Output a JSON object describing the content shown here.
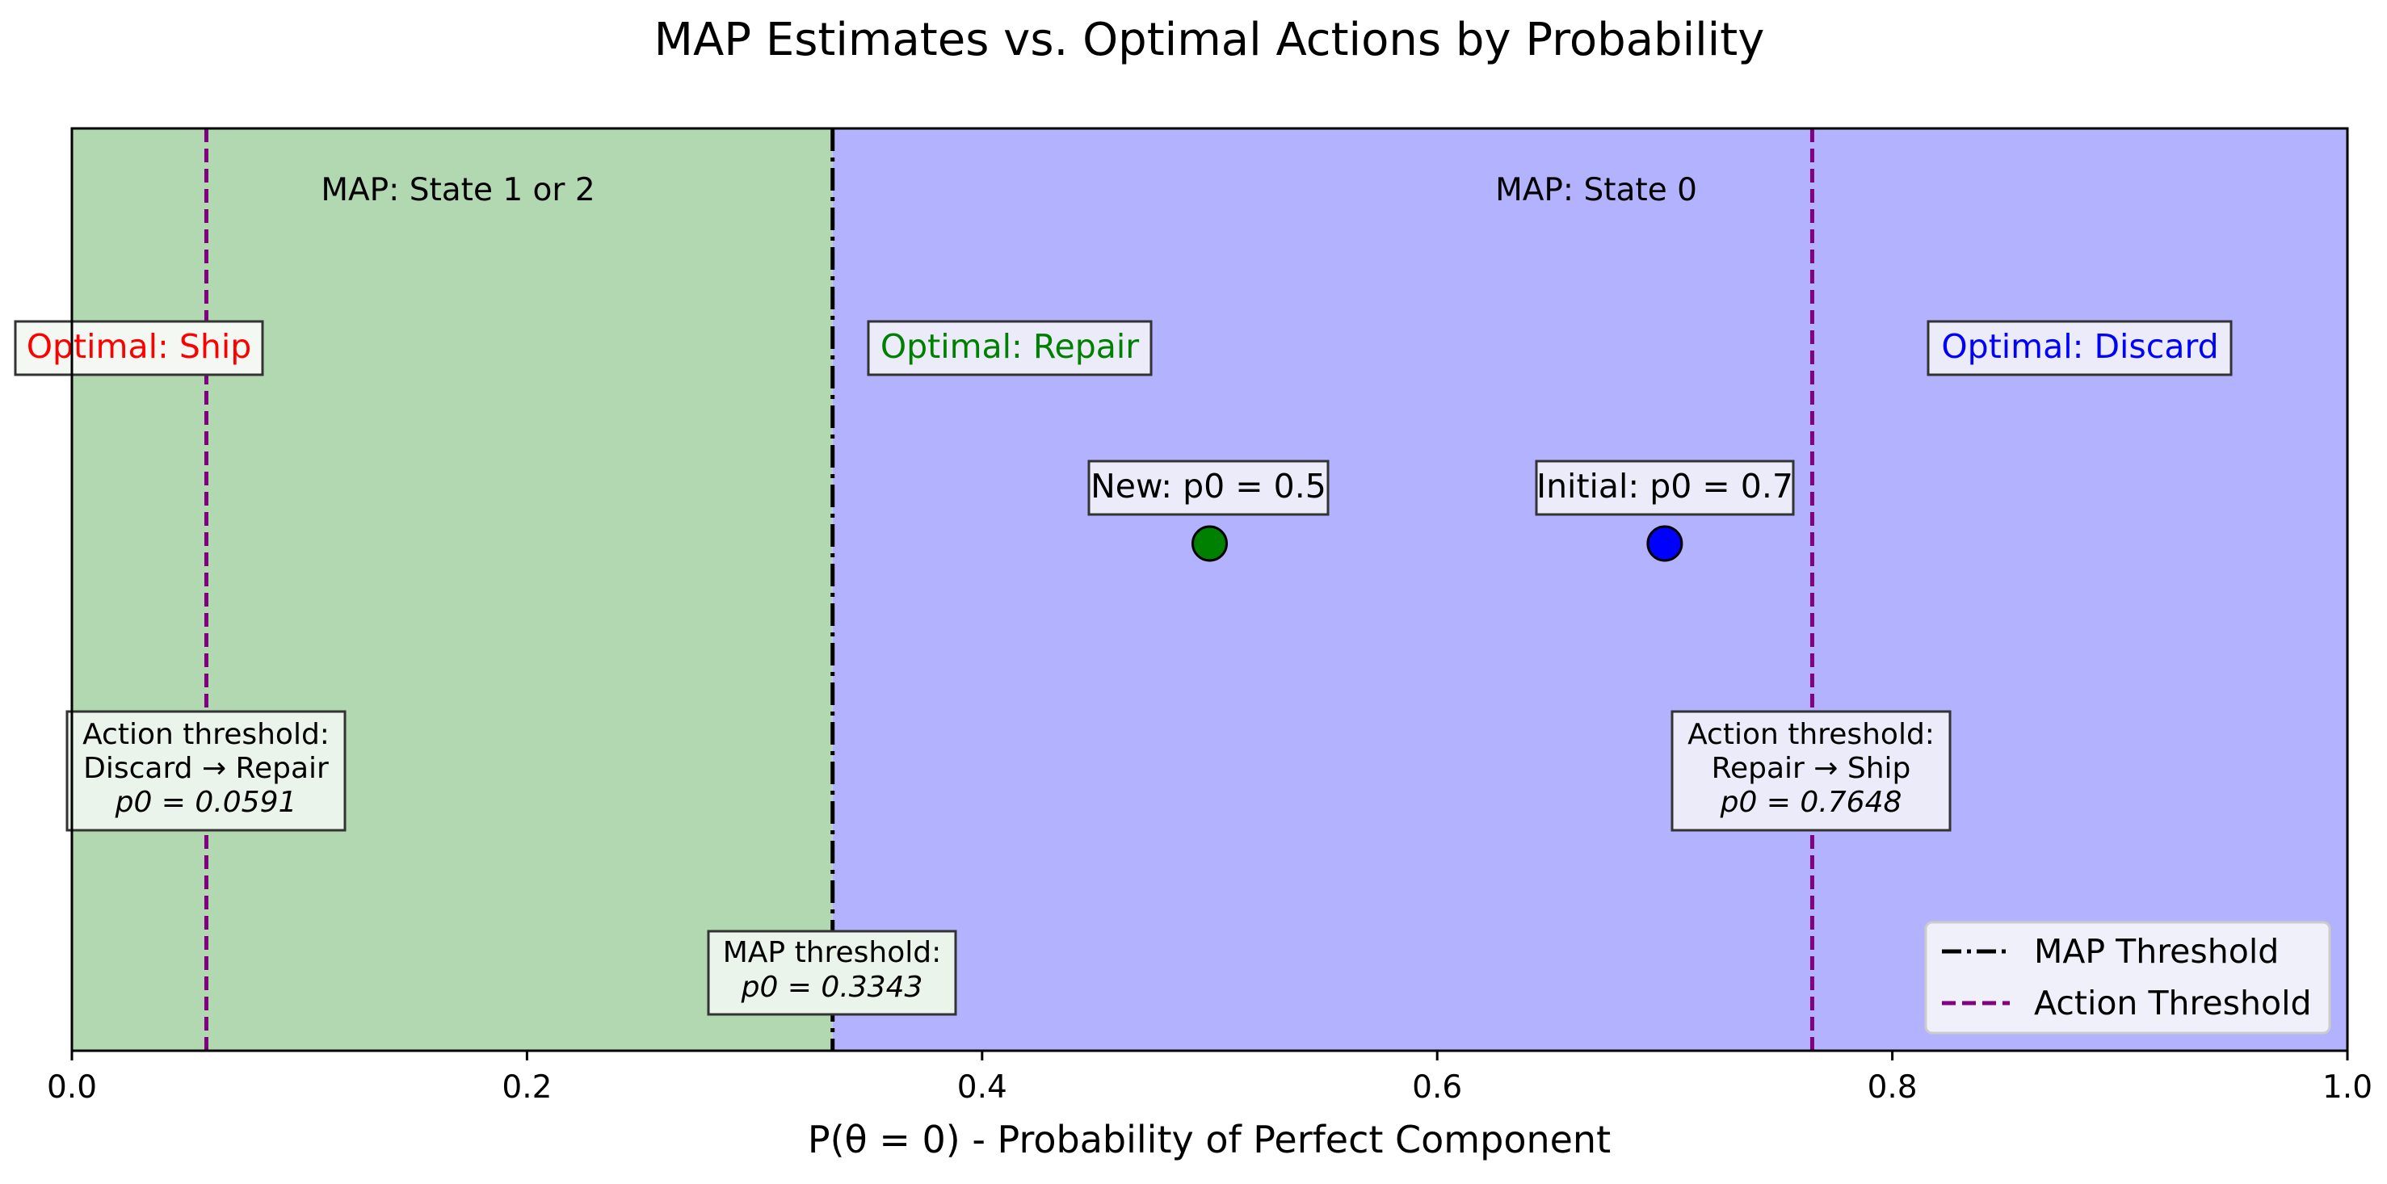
{
  "chart_data": {
    "type": "scatter",
    "title": "MAP Estimates vs. Optimal Actions by Probability",
    "xlabel": "P(θ = 0) - Probability of Perfect Component",
    "ylabel": "",
    "xlim": [
      0,
      1
    ],
    "x_ticks": [
      "0.0",
      "0.2",
      "0.4",
      "0.6",
      "0.8",
      "1.0"
    ],
    "x_tick_values": [
      0,
      0.2,
      0.4,
      0.6,
      0.8,
      1.0
    ],
    "grid": false,
    "regions": [
      {
        "name": "MAP: State 1 or 2",
        "from": 0,
        "to": 0.3343,
        "color": "#b2d8b2"
      },
      {
        "name": "MAP: State 0",
        "from": 0.3343,
        "to": 1.0,
        "color": "#b2b2ff"
      }
    ],
    "optimal_actions": [
      {
        "label": "Optimal: Ship",
        "color": "#ff0000"
      },
      {
        "label": "Optimal: Repair",
        "color": "#008000"
      },
      {
        "label": "Optimal: Discard",
        "color": "#0000ff"
      }
    ],
    "thresholds": [
      {
        "type": "map",
        "x": 0.3343,
        "label_line1": "MAP threshold:",
        "label_line2": "p0 = 0.3343"
      },
      {
        "type": "action",
        "x": 0.0591,
        "label_line1": "Action threshold:",
        "label_line2": "Discard → Repair",
        "label_line3": "p0 = 0.0591"
      },
      {
        "type": "action",
        "x": 0.7648,
        "label_line1": "Action threshold:",
        "label_line2": "Repair → Ship",
        "label_line3": "p0 = 0.7648"
      }
    ],
    "points": [
      {
        "label": "New: p0 = 0.5",
        "x": 0.5,
        "color": "#008000"
      },
      {
        "label": "Initial: p0 = 0.7",
        "x": 0.7,
        "color": "#0000ff"
      }
    ],
    "legend": {
      "placement": "bottom-right",
      "entries": [
        {
          "label": "MAP Threshold",
          "style": "dash-dot",
          "color": "#000000"
        },
        {
          "label": "Action Threshold",
          "style": "dashed",
          "color": "#800080"
        }
      ]
    }
  }
}
